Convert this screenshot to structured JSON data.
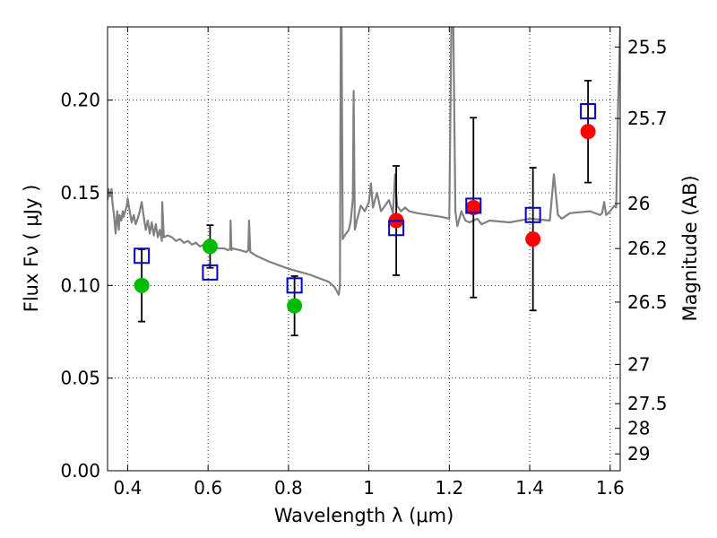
{
  "chart_data": {
    "type": "scatter",
    "title": "",
    "xlabel": "Wavelength  λ (μm)",
    "ylabel": "Flux  Fν  ( μJy )",
    "y2label": "Magnitude (AB)",
    "xlim": [
      0.35,
      1.625
    ],
    "ylim": [
      0.0,
      0.2395
    ],
    "grid": true,
    "x_ticks": [
      0.4,
      0.6,
      0.8,
      1.0,
      1.2,
      1.4,
      1.6
    ],
    "x_tick_labels": [
      "0.4",
      "0.6",
      "0.8",
      "1",
      "1.2",
      "1.4",
      "1.6"
    ],
    "y_ticks": [
      0.0,
      0.05,
      0.1,
      0.15,
      0.2
    ],
    "y_tick_labels": [
      "0.00",
      "0.05",
      "0.10",
      "0.15",
      "0.20"
    ],
    "y2_ticks": [
      {
        "label": "25.5",
        "flux": 0.2286
      },
      {
        "label": "25.7",
        "flux": 0.1901
      },
      {
        "label": "26",
        "flux": 0.1442
      },
      {
        "label": "26.2",
        "flux": 0.1199
      },
      {
        "label": "26.5",
        "flux": 0.091
      },
      {
        "label": "27",
        "flux": 0.0574
      },
      {
        "label": "27.5",
        "flux": 0.0362
      },
      {
        "label": "28",
        "flux": 0.0229
      },
      {
        "label": "29",
        "flux": 0.0091
      }
    ],
    "series": [
      {
        "name": "template spectrum",
        "kind": "line",
        "color": "#808080",
        "x": [
          0.35,
          0.352,
          0.356,
          0.36,
          0.362,
          0.366,
          0.37,
          0.374,
          0.378,
          0.38,
          0.384,
          0.388,
          0.39,
          0.394,
          0.398,
          0.4,
          0.405,
          0.41,
          0.415,
          0.42,
          0.425,
          0.43,
          0.435,
          0.44,
          0.445,
          0.45,
          0.455,
          0.46,
          0.465,
          0.47,
          0.475,
          0.48,
          0.485,
          0.486,
          0.49,
          0.5,
          0.51,
          0.52,
          0.53,
          0.54,
          0.55,
          0.56,
          0.57,
          0.58,
          0.59,
          0.6,
          0.62,
          0.64,
          0.65,
          0.655,
          0.656,
          0.658,
          0.66,
          0.68,
          0.695,
          0.7,
          0.702,
          0.705,
          0.72,
          0.75,
          0.8,
          0.85,
          0.9,
          0.915,
          0.92,
          0.925,
          0.928,
          0.93,
          0.932,
          0.935,
          0.94,
          0.95,
          0.955,
          0.96,
          0.962,
          0.965,
          0.97,
          0.98,
          0.99,
          1.0,
          1.005,
          1.01,
          1.02,
          1.03,
          1.05,
          1.06,
          1.065,
          1.07,
          1.08,
          1.09,
          1.1,
          1.12,
          1.15,
          1.18,
          1.2,
          1.205,
          1.21,
          1.215,
          1.22,
          1.23,
          1.24,
          1.25,
          1.27,
          1.28,
          1.3,
          1.35,
          1.4,
          1.45,
          1.46,
          1.47,
          1.48,
          1.5,
          1.55,
          1.575,
          1.58,
          1.585,
          1.59,
          1.6,
          1.61,
          1.615,
          1.62,
          1.625
        ],
        "y": [
          0.146,
          0.152,
          0.148,
          0.152,
          0.145,
          0.138,
          0.128,
          0.14,
          0.13,
          0.138,
          0.135,
          0.14,
          0.137,
          0.14,
          0.143,
          0.147,
          0.14,
          0.134,
          0.138,
          0.133,
          0.136,
          0.14,
          0.145,
          0.137,
          0.13,
          0.135,
          0.128,
          0.134,
          0.127,
          0.133,
          0.126,
          0.13,
          0.124,
          0.145,
          0.126,
          0.127,
          0.126,
          0.124,
          0.125,
          0.123,
          0.124,
          0.122,
          0.123,
          0.121,
          0.122,
          0.121,
          0.12,
          0.12,
          0.119,
          0.12,
          0.135,
          0.119,
          0.12,
          0.119,
          0.118,
          0.119,
          0.135,
          0.118,
          0.116,
          0.113,
          0.109,
          0.106,
          0.102,
          0.099,
          0.097,
          0.095,
          0.1,
          0.24,
          0.24,
          0.125,
          0.127,
          0.13,
          0.135,
          0.147,
          0.205,
          0.13,
          0.135,
          0.143,
          0.14,
          0.145,
          0.155,
          0.142,
          0.15,
          0.14,
          0.146,
          0.139,
          0.16,
          0.143,
          0.14,
          0.142,
          0.14,
          0.139,
          0.138,
          0.137,
          0.136,
          0.24,
          0.24,
          0.14,
          0.132,
          0.14,
          0.135,
          0.134,
          0.136,
          0.133,
          0.135,
          0.134,
          0.136,
          0.135,
          0.16,
          0.138,
          0.136,
          0.139,
          0.14,
          0.138,
          0.139,
          0.145,
          0.138,
          0.14,
          0.143,
          0.142,
          0.2,
          0.24
        ]
      },
      {
        "name": "observed (green)",
        "kind": "points",
        "color": "#00bb00",
        "points": [
          {
            "x": 0.435,
            "y": 0.1,
            "err": 0.0195
          },
          {
            "x": 0.605,
            "y": 0.121,
            "err": 0.0115
          },
          {
            "x": 0.815,
            "y": 0.089,
            "err": 0.016
          }
        ]
      },
      {
        "name": "observed (red)",
        "kind": "points",
        "color": "#ff0000",
        "points": [
          {
            "x": 1.068,
            "y": 0.135,
            "err": 0.0295
          },
          {
            "x": 1.26,
            "y": 0.142,
            "err": 0.0485
          },
          {
            "x": 1.408,
            "y": 0.125,
            "err": 0.0385
          },
          {
            "x": 1.545,
            "y": 0.183,
            "err": 0.0275
          }
        ]
      },
      {
        "name": "model (blue squares)",
        "kind": "squares",
        "color": "#0000cc",
        "points": [
          {
            "x": 0.435,
            "y": 0.116
          },
          {
            "x": 0.605,
            "y": 0.107
          },
          {
            "x": 0.815,
            "y": 0.1
          },
          {
            "x": 1.068,
            "y": 0.131
          },
          {
            "x": 1.26,
            "y": 0.143
          },
          {
            "x": 1.408,
            "y": 0.138
          },
          {
            "x": 1.545,
            "y": 0.194
          }
        ]
      }
    ]
  }
}
